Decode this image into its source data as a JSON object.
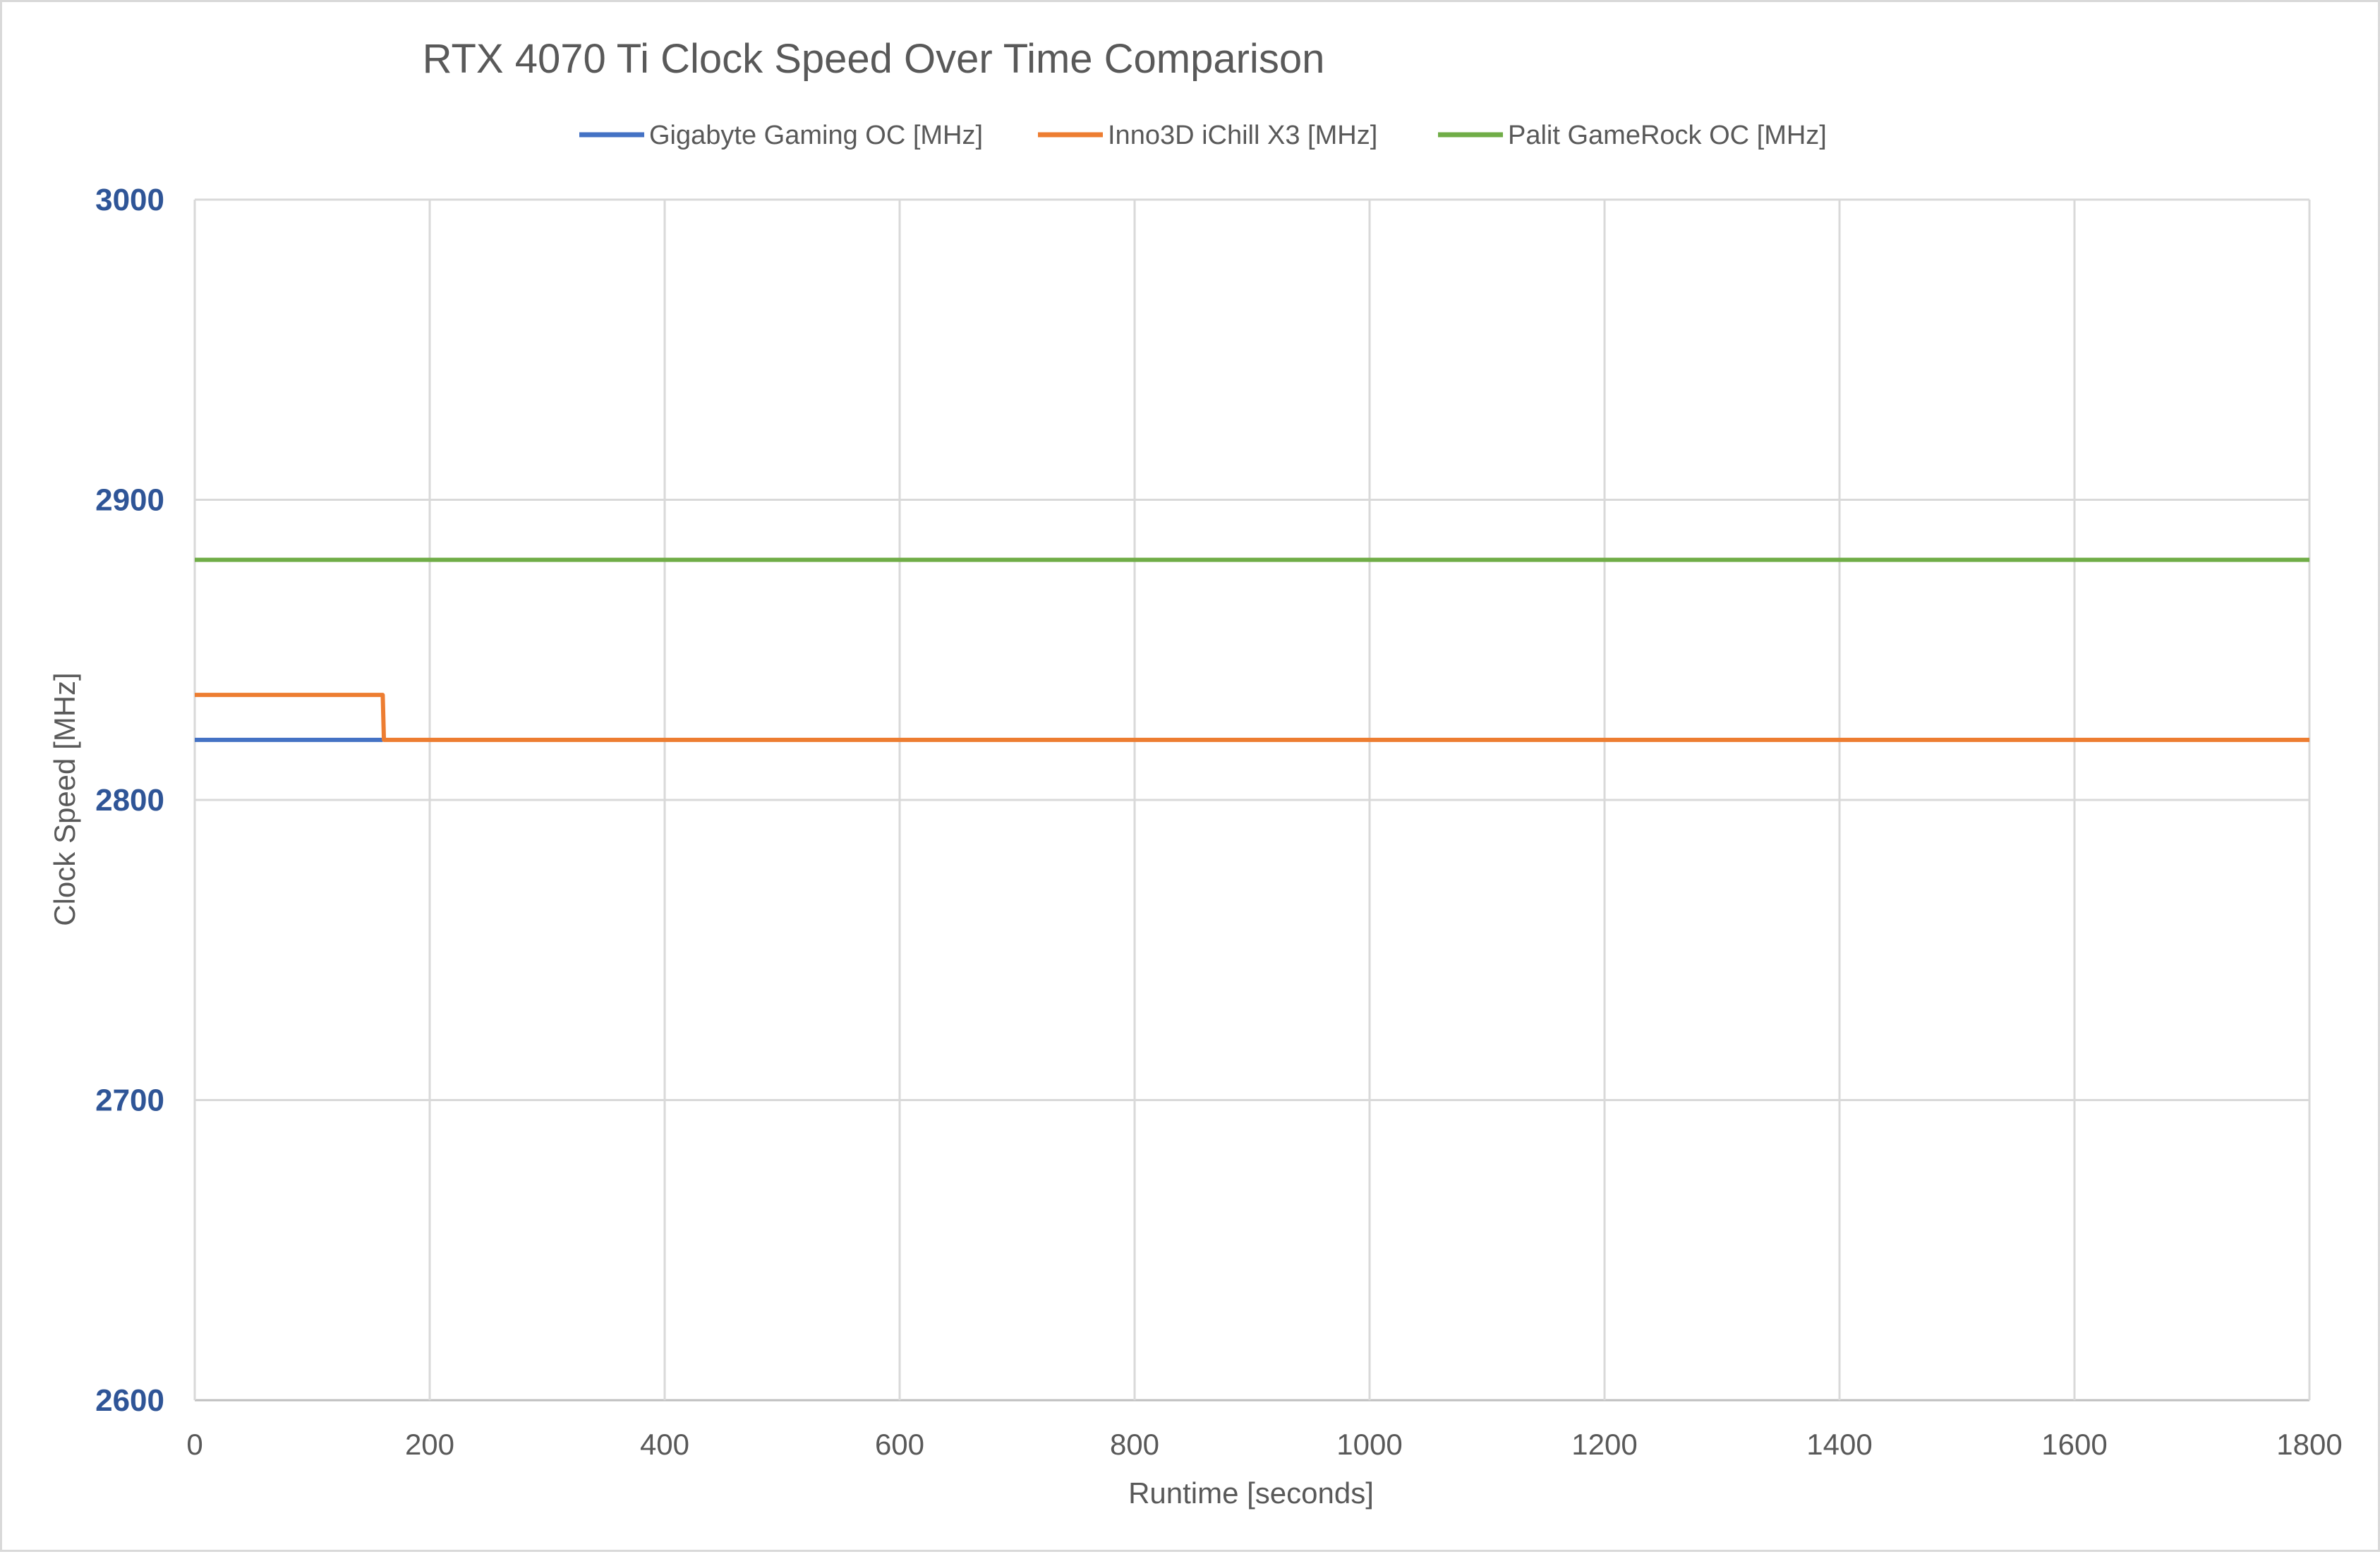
{
  "chart_data": {
    "type": "line",
    "title": "RTX 4070 Ti Clock Speed Over Time Comparison",
    "xlabel": "Runtime [seconds]",
    "ylabel": "Clock Speed [MHz]",
    "xlim": [
      0,
      1800
    ],
    "ylim": [
      2600,
      3000
    ],
    "x_ticks": [
      0,
      200,
      400,
      600,
      800,
      1000,
      1200,
      1400,
      1600,
      1800
    ],
    "y_ticks": [
      2600,
      2700,
      2800,
      2900,
      3000
    ],
    "grid": true,
    "legend_position": "top",
    "y_tick_color": "#2f5597",
    "series": [
      {
        "name": "Gigabyte Gaming OC [MHz]",
        "color": "#4472c4",
        "points": [
          [
            0,
            2820
          ],
          [
            160,
            2820
          ]
        ]
      },
      {
        "name": "Inno3D iChill X3 [MHz]",
        "color": "#ed7d31",
        "points": [
          [
            0,
            2835
          ],
          [
            160,
            2835
          ],
          [
            161,
            2820
          ],
          [
            1800,
            2820
          ]
        ]
      },
      {
        "name": "Palit GameRock OC [MHz]",
        "color": "#70ad47",
        "points": [
          [
            0,
            2880
          ],
          [
            1800,
            2880
          ]
        ]
      }
    ]
  }
}
